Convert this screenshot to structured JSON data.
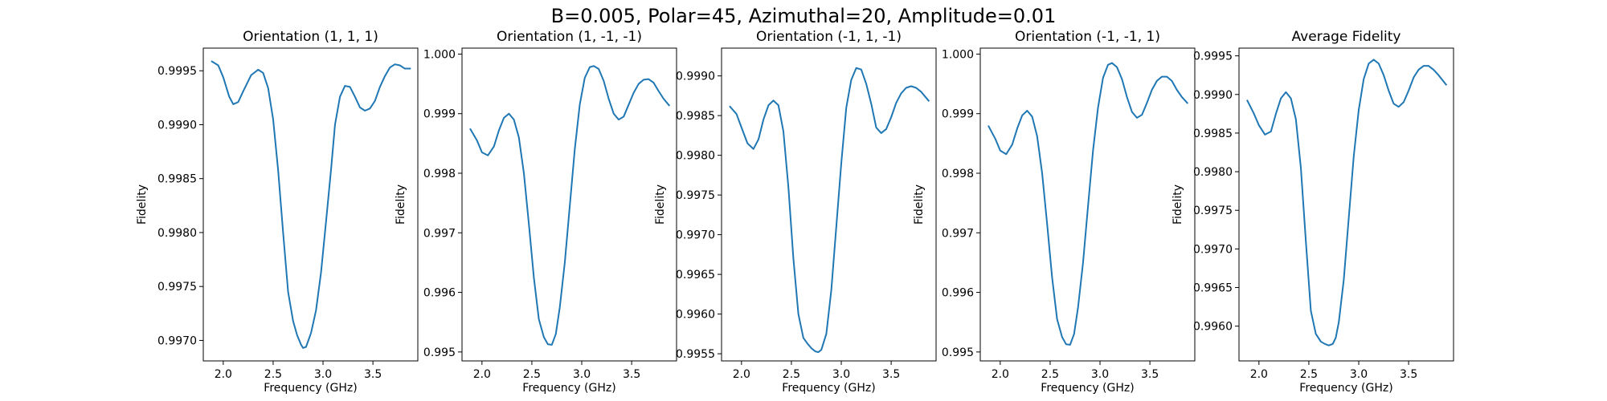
{
  "figure": {
    "title": "B=0.005, Polar=45, Azimuthal=20, Amplitude=0.01",
    "line_color": "#1f77b4"
  },
  "chart_data": [
    {
      "type": "line",
      "title": "Orientation (1, 1, 1)",
      "xlabel": "Frequency (GHz)",
      "ylabel": "Fidelity",
      "xlim": [
        1.8,
        3.95
      ],
      "ylim": [
        0.99681,
        0.99971
      ],
      "xticks": [
        "2.0",
        "2.5",
        "3.0",
        "3.5"
      ],
      "yticks": [
        "0.9970",
        "0.9975",
        "0.9980",
        "0.9985",
        "0.9990",
        "0.9995"
      ],
      "series": [
        {
          "x": [
            1.88,
            1.95,
            2.0,
            2.06,
            2.1,
            2.15,
            2.2,
            2.28,
            2.35,
            2.4,
            2.45,
            2.5,
            2.55,
            2.6,
            2.65,
            2.7,
            2.74,
            2.78,
            2.8,
            2.83,
            2.88,
            2.93,
            2.98,
            3.03,
            3.08,
            3.12,
            3.17,
            3.22,
            3.27,
            3.32,
            3.37,
            3.42,
            3.47,
            3.52,
            3.57,
            3.62,
            3.67,
            3.72,
            3.77,
            3.82,
            3.88
          ],
          "y": [
            0.99959,
            0.99955,
            0.99944,
            0.99926,
            0.99919,
            0.99921,
            0.99931,
            0.99946,
            0.99951,
            0.99948,
            0.99934,
            0.99905,
            0.99858,
            0.998,
            0.99745,
            0.99718,
            0.99705,
            0.99696,
            0.99693,
            0.99694,
            0.99707,
            0.99728,
            0.99763,
            0.9981,
            0.99858,
            0.999,
            0.99926,
            0.99936,
            0.99935,
            0.99926,
            0.99916,
            0.99913,
            0.99915,
            0.99922,
            0.99935,
            0.99945,
            0.99953,
            0.99956,
            0.99955,
            0.99952,
            0.99952
          ]
        }
      ]
    },
    {
      "type": "line",
      "title": "Orientation (1, -1, -1)",
      "xlabel": "Frequency (GHz)",
      "ylabel": "Fidelity",
      "xlim": [
        1.8,
        3.95
      ],
      "ylim": [
        0.99485,
        1.0001
      ],
      "xticks": [
        "2.0",
        "2.5",
        "3.0",
        "3.5"
      ],
      "yticks": [
        "0.995",
        "0.996",
        "0.997",
        "0.998",
        "0.999",
        "1.000"
      ],
      "series": [
        {
          "x": [
            1.88,
            1.95,
            2.0,
            2.06,
            2.12,
            2.17,
            2.22,
            2.27,
            2.32,
            2.37,
            2.42,
            2.47,
            2.52,
            2.57,
            2.62,
            2.66,
            2.7,
            2.74,
            2.78,
            2.83,
            2.88,
            2.93,
            2.98,
            3.03,
            3.08,
            3.12,
            3.17,
            3.22,
            3.27,
            3.32,
            3.37,
            3.42,
            3.47,
            3.52,
            3.57,
            3.62,
            3.67,
            3.72,
            3.77,
            3.82,
            3.88
          ],
          "y": [
            0.99875,
            0.99855,
            0.99835,
            0.9983,
            0.99845,
            0.99872,
            0.99893,
            0.999,
            0.9989,
            0.9986,
            0.998,
            0.99715,
            0.99625,
            0.99555,
            0.99525,
            0.99513,
            0.99512,
            0.9953,
            0.99575,
            0.9965,
            0.99745,
            0.9984,
            0.99915,
            0.9996,
            0.99978,
            0.9998,
            0.99975,
            0.99955,
            0.99925,
            0.999,
            0.9989,
            0.99895,
            0.99915,
            0.99935,
            0.9995,
            0.99957,
            0.99958,
            0.99952,
            0.99938,
            0.99925,
            0.99913
          ]
        }
      ]
    },
    {
      "type": "line",
      "title": "Orientation (-1, 1, -1)",
      "xlabel": "Frequency (GHz)",
      "ylabel": "Fidelity",
      "xlim": [
        1.8,
        3.95
      ],
      "ylim": [
        0.99541,
        0.99935
      ],
      "xticks": [
        "2.0",
        "2.5",
        "3.0",
        "3.5"
      ],
      "yticks": [
        "0.9955",
        "0.9960",
        "0.9965",
        "0.9970",
        "0.9975",
        "0.9980",
        "0.9985",
        "0.9990"
      ],
      "series": [
        {
          "x": [
            1.88,
            1.95,
            2.0,
            2.06,
            2.12,
            2.17,
            2.22,
            2.27,
            2.32,
            2.37,
            2.42,
            2.47,
            2.52,
            2.57,
            2.62,
            2.66,
            2.7,
            2.74,
            2.77,
            2.8,
            2.85,
            2.9,
            2.95,
            3.0,
            3.05,
            3.1,
            3.15,
            3.2,
            3.25,
            3.3,
            3.35,
            3.4,
            3.45,
            3.5,
            3.55,
            3.6,
            3.65,
            3.7,
            3.75,
            3.8,
            3.88
          ],
          "y": [
            0.99862,
            0.99852,
            0.99835,
            0.99815,
            0.99808,
            0.9982,
            0.99845,
            0.99863,
            0.99869,
            0.99863,
            0.9983,
            0.9976,
            0.9967,
            0.996,
            0.9957,
            0.99563,
            0.99557,
            0.99553,
            0.99552,
            0.99555,
            0.99575,
            0.9963,
            0.9971,
            0.9979,
            0.9986,
            0.99895,
            0.9991,
            0.99908,
            0.9989,
            0.99865,
            0.99835,
            0.99828,
            0.99833,
            0.99848,
            0.99866,
            0.99878,
            0.99885,
            0.99887,
            0.99885,
            0.9988,
            0.99868
          ]
        }
      ]
    },
    {
      "type": "line",
      "title": "Orientation (-1, -1, 1)",
      "xlabel": "Frequency (GHz)",
      "ylabel": "Fidelity",
      "xlim": [
        1.8,
        3.95
      ],
      "ylim": [
        0.99485,
        1.0001
      ],
      "xticks": [
        "2.0",
        "2.5",
        "3.0",
        "3.5"
      ],
      "yticks": [
        "0.995",
        "0.996",
        "0.997",
        "0.998",
        "0.999",
        "1.000"
      ],
      "series": [
        {
          "x": [
            1.88,
            1.95,
            2.0,
            2.06,
            2.12,
            2.17,
            2.22,
            2.27,
            2.32,
            2.37,
            2.42,
            2.47,
            2.52,
            2.57,
            2.62,
            2.66,
            2.7,
            2.74,
            2.78,
            2.83,
            2.88,
            2.93,
            2.98,
            3.03,
            3.08,
            3.12,
            3.17,
            3.22,
            3.27,
            3.32,
            3.37,
            3.42,
            3.47,
            3.52,
            3.57,
            3.62,
            3.67,
            3.72,
            3.77,
            3.82,
            3.88
          ],
          "y": [
            0.9988,
            0.99858,
            0.99838,
            0.99832,
            0.99848,
            0.99875,
            0.99897,
            0.99905,
            0.99895,
            0.99862,
            0.998,
            0.99715,
            0.99625,
            0.99555,
            0.99525,
            0.99513,
            0.99512,
            0.9953,
            0.99575,
            0.9965,
            0.99745,
            0.99838,
            0.9991,
            0.9996,
            0.99982,
            0.99985,
            0.99978,
            0.99958,
            0.99928,
            0.99903,
            0.99893,
            0.99898,
            0.99918,
            0.9994,
            0.99955,
            0.99962,
            0.99962,
            0.99955,
            0.9994,
            0.99928,
            0.99917
          ]
        }
      ]
    },
    {
      "type": "line",
      "title": "Average Fidelity",
      "xlabel": "Frequency (GHz)",
      "ylabel": "Fidelity",
      "xlim": [
        1.8,
        3.95
      ],
      "ylim": [
        0.99555,
        0.9996
      ],
      "xticks": [
        "2.0",
        "2.5",
        "3.0",
        "3.5"
      ],
      "yticks": [
        "0.9960",
        "0.9965",
        "0.9970",
        "0.9975",
        "0.9980",
        "0.9985",
        "0.9990",
        "0.9995"
      ],
      "series": [
        {
          "x": [
            1.88,
            1.95,
            2.0,
            2.06,
            2.12,
            2.17,
            2.22,
            2.27,
            2.32,
            2.37,
            2.42,
            2.47,
            2.52,
            2.57,
            2.62,
            2.66,
            2.7,
            2.74,
            2.77,
            2.8,
            2.85,
            2.9,
            2.95,
            3.0,
            3.05,
            3.1,
            3.15,
            3.2,
            3.25,
            3.3,
            3.35,
            3.4,
            3.45,
            3.5,
            3.55,
            3.6,
            3.65,
            3.7,
            3.75,
            3.8,
            3.88
          ],
          "y": [
            0.99893,
            0.99875,
            0.9986,
            0.99848,
            0.99852,
            0.99875,
            0.99895,
            0.99903,
            0.99895,
            0.99868,
            0.99805,
            0.9971,
            0.9962,
            0.9959,
            0.9958,
            0.99577,
            0.99575,
            0.99577,
            0.99585,
            0.99605,
            0.9966,
            0.9974,
            0.9982,
            0.9988,
            0.9992,
            0.9994,
            0.99945,
            0.9994,
            0.99925,
            0.99905,
            0.99888,
            0.99884,
            0.9989,
            0.99905,
            0.99922,
            0.99932,
            0.99937,
            0.99937,
            0.99932,
            0.99925,
            0.99912
          ]
        }
      ]
    }
  ]
}
